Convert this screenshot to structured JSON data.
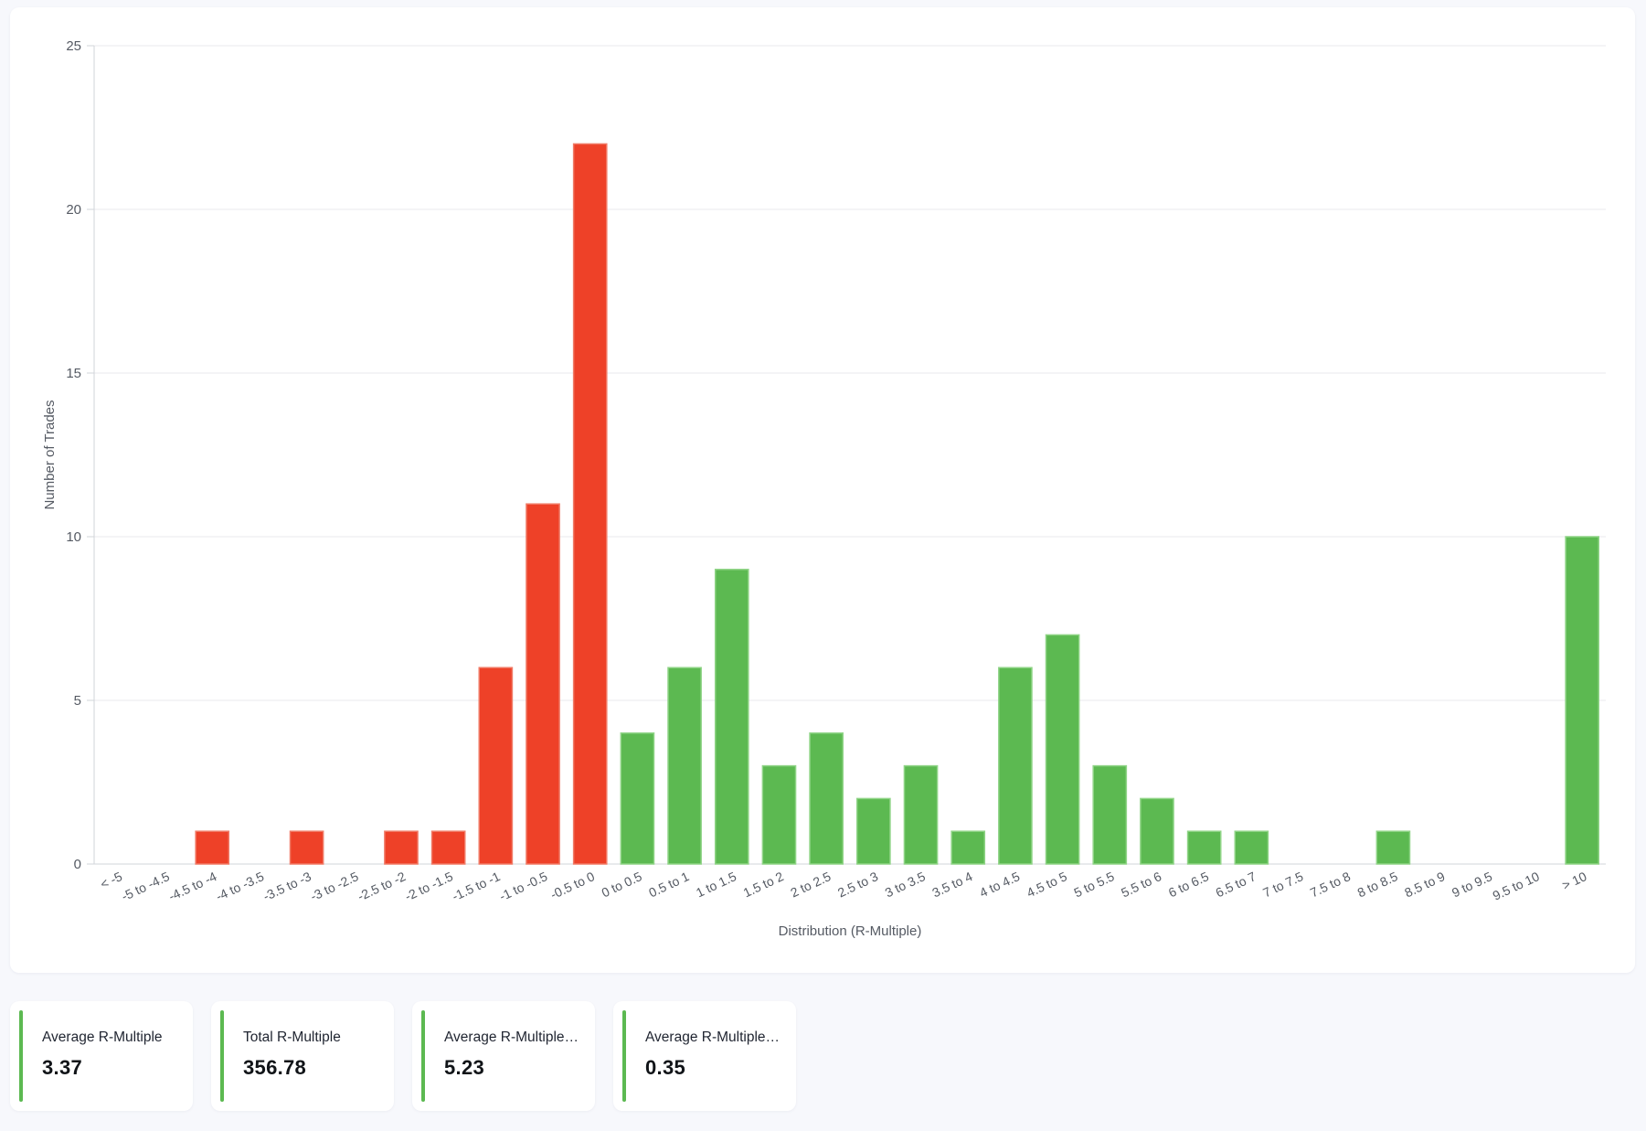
{
  "chart_data": {
    "type": "bar",
    "xlabel": "Distribution (R-Multiple)",
    "ylabel": "Number of Trades",
    "ylim": [
      0,
      25
    ],
    "yticks": [
      0,
      5,
      10,
      15,
      20,
      25
    ],
    "grid": true,
    "categories": [
      "< -5",
      "-5 to -4.5",
      "-4.5 to -4",
      "-4 to -3.5",
      "-3.5 to -3",
      "-3 to -2.5",
      "-2.5 to -2",
      "-2 to -1.5",
      "-1.5 to -1",
      "-1 to -0.5",
      "-0.5 to 0",
      "0 to 0.5",
      "0.5 to 1",
      "1 to 1.5",
      "1.5 to 2",
      "2 to 2.5",
      "2.5 to 3",
      "3 to 3.5",
      "3.5 to 4",
      "4 to 4.5",
      "4.5 to 5",
      "5 to 5.5",
      "5.5 to 6",
      "6 to 6.5",
      "6.5 to 7",
      "7 to 7.5",
      "7.5 to 8",
      "8 to 8.5",
      "8.5 to 9",
      "9 to 9.5",
      "9.5 to 10",
      "> 10"
    ],
    "values": [
      0,
      0,
      1,
      0,
      1,
      0,
      1,
      1,
      6,
      11,
      22,
      4,
      6,
      9,
      3,
      4,
      2,
      3,
      1,
      6,
      7,
      3,
      2,
      1,
      1,
      0,
      0,
      1,
      0,
      0,
      0,
      10
    ],
    "colors": {
      "negative": "#ee4128",
      "positive": "#5cb951"
    }
  },
  "stats": [
    {
      "label": "Average R-Multiple",
      "value": "3.37"
    },
    {
      "label": "Total R-Multiple",
      "value": "356.78"
    },
    {
      "label": "Average R-Multiple …",
      "value": "5.23"
    },
    {
      "label": "Average R-Multiple L…",
      "value": "0.35"
    }
  ],
  "accent_color": "#5cb951"
}
